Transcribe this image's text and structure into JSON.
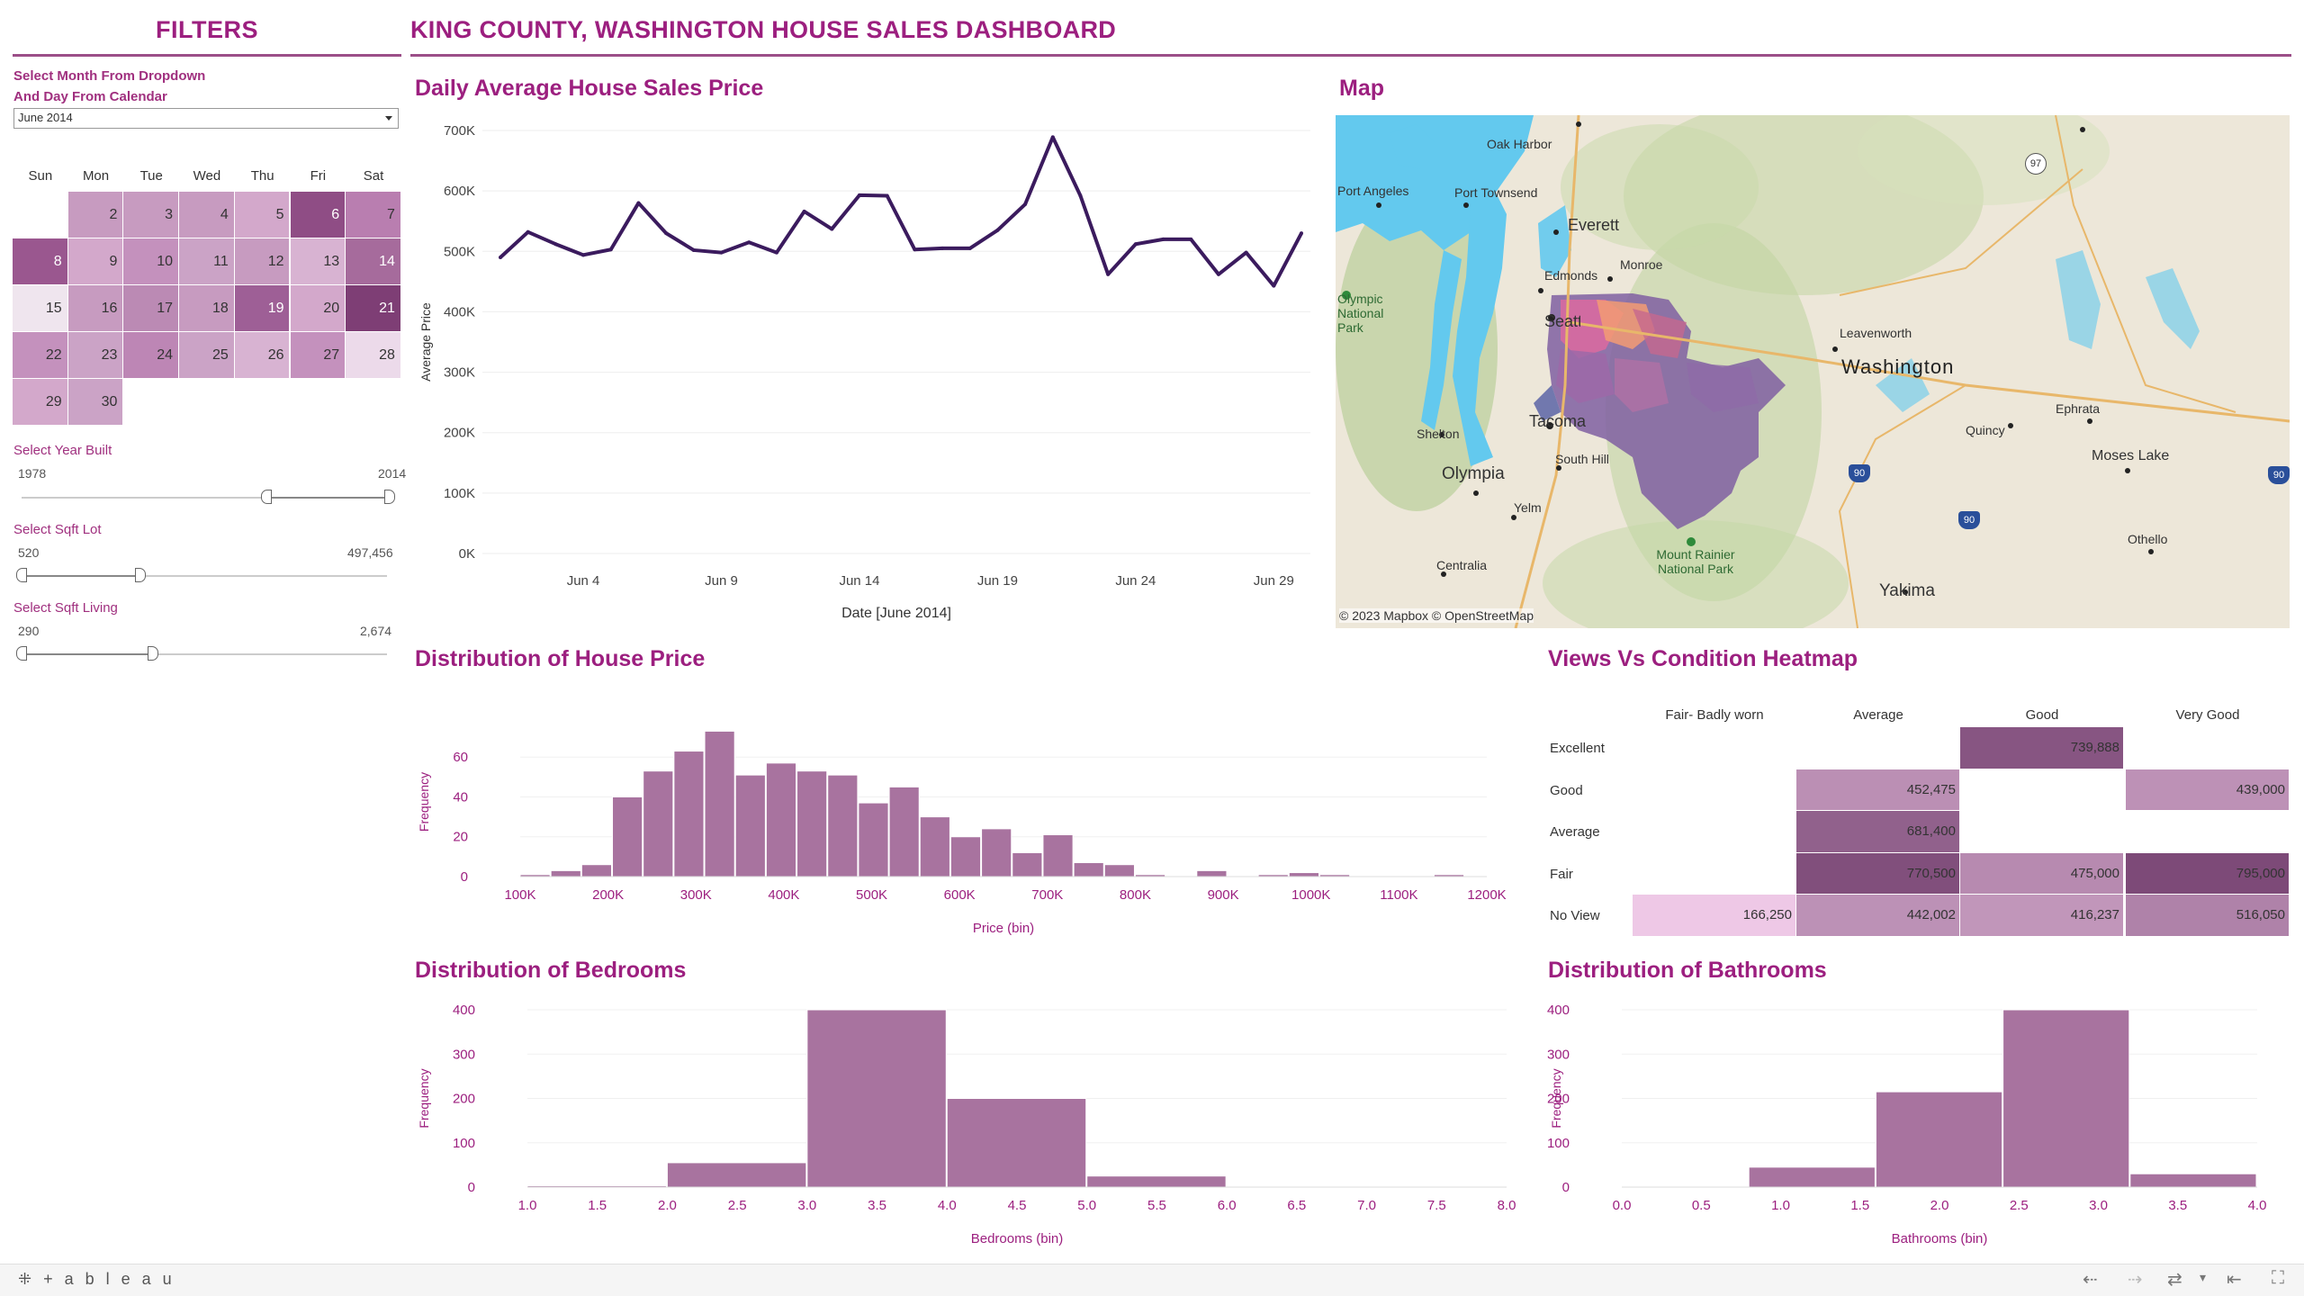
{
  "filters": {
    "title": "FILTERS",
    "month_label_1": "Select Month From Dropdown",
    "month_label_2": "And Day From Calendar",
    "month_value": "June 2014",
    "weekdays": [
      "Sun",
      "Mon",
      "Tue",
      "Wed",
      "Thu",
      "Fri",
      "Sat"
    ],
    "days": [
      "2",
      "3",
      "4",
      "5",
      "6",
      "7",
      "8",
      "9",
      "10",
      "11",
      "12",
      "13",
      "14",
      "15",
      "16",
      "17",
      "18",
      "19",
      "20",
      "21",
      "22",
      "23",
      "24",
      "25",
      "26",
      "27",
      "28",
      "29",
      "30"
    ],
    "year_label": "Select Year Built",
    "year_min": "1978",
    "year_max": "2014",
    "lot_label": "Select Sqft Lot",
    "lot_min": "520",
    "lot_max": "497,456",
    "living_label": "Select Sqft Living",
    "living_min": "290",
    "living_max": "2,674"
  },
  "dashboard_title": "KING COUNTY, WASHINGTON HOUSE SALES DASHBOARD",
  "daily": {
    "title": "Daily Average House Sales Price",
    "ylabel": "Average Price",
    "xlabel": "Date [June 2014]",
    "yticks": [
      "0K",
      "100K",
      "200K",
      "300K",
      "400K",
      "500K",
      "600K",
      "700K"
    ],
    "xticks": [
      "Jun 4",
      "Jun 9",
      "Jun 14",
      "Jun 19",
      "Jun 24",
      "Jun 29"
    ],
    "values": [
      490,
      532,
      512,
      494,
      503,
      580,
      530,
      502,
      498,
      515,
      498,
      566,
      537,
      593,
      592,
      503,
      505,
      505,
      535,
      578,
      689,
      592,
      462,
      512,
      520,
      520,
      462,
      498,
      443,
      530
    ]
  },
  "map": {
    "title": "Map",
    "copyright": "© 2023 Mapbox  © OpenStreetMap",
    "places": [
      "Oak Harbor",
      "Port Angeles",
      "Port Townsend",
      "Everett",
      "Edmonds",
      "Monroe",
      "Seattle",
      "Leavenworth",
      "Washington",
      "Ephrata",
      "Quincy",
      "Moses Lake",
      "Shelton",
      "Tacoma",
      "South Hill",
      "Olympia",
      "Yelm",
      "Centralia",
      "Mount Rainier National Park",
      "Othello",
      "Yakima",
      "Olympic National Park"
    ],
    "shields": [
      "97",
      "90",
      "90",
      "90"
    ]
  },
  "house_price": {
    "title": "Distribution of House Price",
    "ylabel": "Frequency",
    "xlabel": "Price (bin)",
    "yticks": [
      "0",
      "20",
      "40",
      "60"
    ],
    "xticks": [
      "100K",
      "200K",
      "300K",
      "400K",
      "500K",
      "600K",
      "700K",
      "800K",
      "900K",
      "1000K",
      "1100K",
      "1200K"
    ]
  },
  "heatmap": {
    "title": "Views Vs Condition Heatmap",
    "columns": [
      "Fair- Badly worn",
      "Average",
      "Good",
      "Very Good"
    ],
    "rows": [
      {
        "label": "Excellent",
        "cells": [
          "",
          "",
          "739,888",
          ""
        ]
      },
      {
        "label": "Good",
        "cells": [
          "",
          "452,475",
          "",
          "439,000"
        ]
      },
      {
        "label": "Average",
        "cells": [
          "",
          "681,400",
          "",
          ""
        ]
      },
      {
        "label": "Fair",
        "cells": [
          "",
          "770,500",
          "475,000",
          "795,000"
        ]
      },
      {
        "label": "No View",
        "cells": [
          "166,250",
          "442,002",
          "416,237",
          "516,050"
        ]
      }
    ]
  },
  "bedrooms": {
    "title": "Distribution of Bedrooms",
    "ylabel": "Frequency",
    "xlabel": "Bedrooms (bin)",
    "yticks": [
      "0",
      "100",
      "200",
      "300",
      "400"
    ],
    "xticks": [
      "1.0",
      "1.5",
      "2.0",
      "2.5",
      "3.0",
      "3.5",
      "4.0",
      "4.5",
      "5.0",
      "5.5",
      "6.0",
      "6.5",
      "7.0",
      "7.5",
      "8.0"
    ]
  },
  "bathrooms": {
    "title": "Distribution of Bathrooms",
    "ylabel": "Frequency",
    "xlabel": "Bathrooms (bin)",
    "yticks": [
      "0",
      "100",
      "200",
      "300",
      "400"
    ],
    "xticks": [
      "0.0",
      "0.5",
      "1.0",
      "1.5",
      "2.0",
      "2.5",
      "3.0",
      "3.5",
      "4.0"
    ]
  },
  "chart_data": [
    {
      "type": "line",
      "title": "Daily Average House Sales Price",
      "xlabel": "Date [June 2014]",
      "ylabel": "Average Price",
      "x": [
        1,
        2,
        3,
        4,
        5,
        6,
        7,
        8,
        9,
        10,
        11,
        12,
        13,
        14,
        15,
        16,
        17,
        18,
        19,
        20,
        21,
        22,
        23,
        24,
        25,
        26,
        27,
        28,
        29,
        30
      ],
      "values": [
        490000,
        532000,
        512000,
        494000,
        503000,
        580000,
        530000,
        502000,
        498000,
        515000,
        498000,
        566000,
        537000,
        593000,
        592000,
        503000,
        505000,
        505000,
        535000,
        578000,
        689000,
        592000,
        462000,
        512000,
        520000,
        520000,
        462000,
        498000,
        443000,
        530000
      ],
      "ylim": [
        0,
        700000
      ]
    },
    {
      "type": "bar",
      "title": "Distribution of House Price",
      "xlabel": "Price (bin)",
      "ylabel": "Frequency",
      "bin_width": 35000,
      "bin_starts": [
        100000,
        135000,
        170000,
        205000,
        240000,
        275000,
        310000,
        345000,
        380000,
        415000,
        450000,
        485000,
        520000,
        555000,
        590000,
        625000,
        660000,
        695000,
        730000,
        765000,
        800000,
        870000,
        940000,
        975000,
        1010000,
        1140000
      ],
      "values": [
        1,
        3,
        6,
        40,
        53,
        63,
        73,
        51,
        57,
        53,
        51,
        37,
        45,
        30,
        20,
        24,
        12,
        21,
        7,
        6,
        1,
        3,
        1,
        2,
        1,
        1
      ],
      "ylim": [
        0,
        75
      ]
    },
    {
      "type": "heatmap",
      "title": "Views Vs Condition Heatmap",
      "columns": [
        "Fair- Badly worn",
        "Average",
        "Good",
        "Very Good"
      ],
      "rows": [
        "Excellent",
        "Good",
        "Average",
        "Fair",
        "No View"
      ],
      "values": [
        [
          null,
          null,
          739888,
          null
        ],
        [
          null,
          452475,
          null,
          439000
        ],
        [
          null,
          681400,
          null,
          null
        ],
        [
          null,
          770500,
          475000,
          795000
        ],
        [
          166250,
          442002,
          416237,
          516050
        ]
      ]
    },
    {
      "type": "bar",
      "title": "Distribution of Bedrooms",
      "xlabel": "Bedrooms (bin)",
      "ylabel": "Frequency",
      "bin_starts": [
        1.0,
        2.0,
        3.0,
        4.0,
        5.0
      ],
      "bin_width": 1.0,
      "values": [
        3,
        55,
        400,
        200,
        25
      ],
      "ylim": [
        0,
        400
      ]
    },
    {
      "type": "bar",
      "title": "Distribution of Bathrooms",
      "xlabel": "Bathrooms (bin)",
      "ylabel": "Frequency",
      "bin_starts": [
        0.0,
        0.8,
        1.6,
        2.4,
        3.2
      ],
      "bin_width": 0.8,
      "values": [
        2,
        45,
        215,
        400,
        30
      ],
      "ylim": [
        0,
        400
      ]
    }
  ]
}
